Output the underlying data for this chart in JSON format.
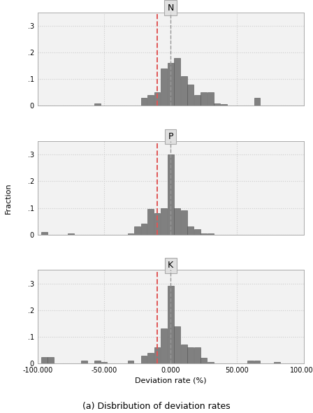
{
  "panels": [
    "N",
    "P",
    "K"
  ],
  "xlim": [
    -100000,
    100000
  ],
  "ylim": [
    0,
    0.35
  ],
  "yticks": [
    0,
    0.1,
    0.2,
    0.3
  ],
  "ytick_labels": [
    "0",
    ".1",
    ".2",
    ".3"
  ],
  "xticks": [
    -100000,
    -50000,
    0,
    50000,
    100000
  ],
  "xtick_labels": [
    "-100.000",
    "-50.000",
    "0.000",
    "50.000",
    "100.000"
  ],
  "xlabel": "Deviation rate (%)",
  "ylabel": "Fraction",
  "caption": "(a) Disbribution of deviation rates",
  "bar_color": "#808080",
  "bar_edgecolor": "#505050",
  "red_line_x": -10000,
  "gray_line_x": 0,
  "bin_width": 5000,
  "N_bars": {
    "centers": [
      -55000,
      -20000,
      -15000,
      -10000,
      -5000,
      0,
      5000,
      10000,
      15000,
      20000,
      25000,
      30000,
      35000,
      40000,
      65000
    ],
    "heights": [
      0.01,
      0.03,
      0.04,
      0.05,
      0.14,
      0.16,
      0.18,
      0.11,
      0.08,
      0.04,
      0.05,
      0.05,
      0.01,
      0.005,
      0.03
    ]
  },
  "P_bars": {
    "centers": [
      -95000,
      -75000,
      -30000,
      -25000,
      -20000,
      -15000,
      -10000,
      -5000,
      0,
      5000,
      10000,
      15000,
      20000,
      25000,
      30000
    ],
    "heights": [
      0.01,
      0.005,
      0.005,
      0.03,
      0.04,
      0.095,
      0.08,
      0.1,
      0.3,
      0.1,
      0.09,
      0.03,
      0.02,
      0.005,
      0.005
    ]
  },
  "K_bars": {
    "centers": [
      -95000,
      -90000,
      -65000,
      -55000,
      -50000,
      -30000,
      -20000,
      -15000,
      -10000,
      -5000,
      0,
      5000,
      10000,
      15000,
      20000,
      25000,
      30000,
      60000,
      65000,
      80000
    ],
    "heights": [
      0.025,
      0.025,
      0.01,
      0.01,
      0.005,
      0.01,
      0.03,
      0.04,
      0.06,
      0.13,
      0.29,
      0.14,
      0.07,
      0.06,
      0.06,
      0.02,
      0.005,
      0.01,
      0.01,
      0.005
    ]
  },
  "background_color": "#f2f2f2",
  "panel_title_bg": "#e0e0e0",
  "grid_color": "#cccccc",
  "title_fontsize": 9,
  "axis_fontsize": 8,
  "tick_fontsize": 7,
  "caption_fontsize": 9
}
